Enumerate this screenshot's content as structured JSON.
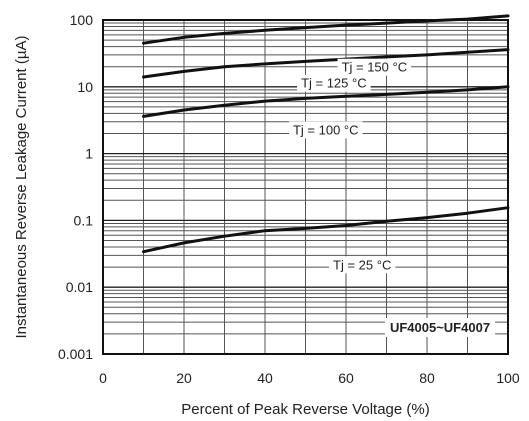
{
  "chart_data": {
    "type": "line",
    "title": "",
    "xlabel": "Percent of Peak Reverse Voltage (%)",
    "ylabel": "Instantaneous Reverse Leakage Current (µA)",
    "xlim": [
      0,
      100
    ],
    "ylim": [
      0.001,
      100
    ],
    "y_scale": "log",
    "grid": true,
    "x_ticks": [
      "0",
      "20",
      "40",
      "60",
      "80",
      "100"
    ],
    "y_ticks": [
      "0.001",
      "0.01",
      "0.1",
      "1",
      "10",
      "100"
    ],
    "annotation": "UF4005~UF4007",
    "series": [
      {
        "name": "Tj = 150 °C",
        "x": [
          10,
          20,
          30,
          40,
          50,
          60,
          70,
          80,
          90,
          100
        ],
        "y": [
          45,
          55,
          63,
          70,
          77,
          84,
          90,
          97,
          103,
          115
        ]
      },
      {
        "name": "Tj = 125 °C",
        "x": [
          10,
          20,
          30,
          40,
          50,
          60,
          70,
          80,
          90,
          100
        ],
        "y": [
          14,
          17,
          20,
          22,
          24,
          26,
          28,
          30,
          33,
          36
        ]
      },
      {
        "name": "Tj = 100 °C",
        "x": [
          10,
          20,
          30,
          40,
          50,
          60,
          70,
          80,
          90,
          100
        ],
        "y": [
          3.6,
          4.5,
          5.3,
          6.1,
          6.7,
          7.2,
          7.7,
          8.3,
          9.0,
          10
        ]
      },
      {
        "name": "Tj = 25 °C",
        "x": [
          10,
          20,
          30,
          40,
          50,
          60,
          70,
          80,
          90,
          100
        ],
        "y": [
          0.034,
          0.046,
          0.058,
          0.07,
          0.076,
          0.084,
          0.097,
          0.11,
          0.128,
          0.155
        ]
      }
    ]
  }
}
